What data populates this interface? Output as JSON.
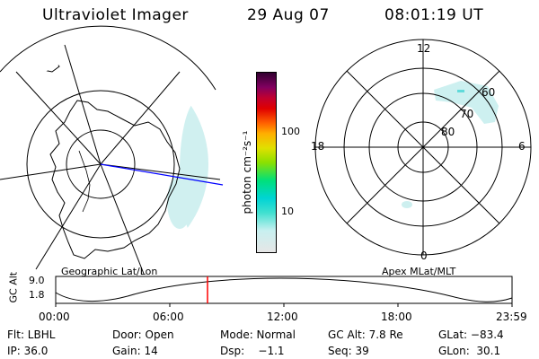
{
  "header": {
    "instrument": "Ultraviolet Imager",
    "date": "29 Aug 07",
    "time": "08:01:19 UT"
  },
  "left_panel": {
    "caption": "Geographic Lat/Lon",
    "view": "southern hemisphere geographic map with Antarctica outline and lat/lon grid",
    "overlay_line_color": "#0000ff"
  },
  "right_panel": {
    "caption": "Apex MLat/MLT",
    "mlt_labels": {
      "top": "12",
      "left": "18",
      "right": "6",
      "bottom": "0"
    },
    "mlat_labels": [
      "60",
      "70",
      "80"
    ]
  },
  "colorbar": {
    "unit_label": "photon cm⁻²s⁻¹",
    "ticks": [
      "100",
      "10"
    ],
    "scale": "log",
    "colors_bottom_to_top": [
      "#e6e6e6",
      "#c8f0f0",
      "#40e0d0",
      "#00d4d4",
      "#00e07a",
      "#8ce000",
      "#e0e000",
      "#ffb000",
      "#ff6000",
      "#e00000",
      "#c00030",
      "#800060",
      "#300030"
    ]
  },
  "timeline": {
    "axis_label": "GC Alt",
    "y_ticks": [
      "9.0",
      "1.8"
    ],
    "x_ticks": [
      "00:00",
      "06:00",
      "12:00",
      "18:00",
      "23:59"
    ],
    "marker_time": "08:01",
    "marker_color": "#ff0000"
  },
  "footer": {
    "flt": "Flt: LBHL",
    "door": "Door: Open",
    "mode": "Mode: Normal",
    "gc_alt": "GC Alt: 7.8 Re",
    "glat": "GLat: −83.4",
    "ip": "IP: 36.0",
    "gain": "Gain: 14",
    "dsp": "Dsp:    −1.1",
    "seq": "Seq: 39",
    "glon": "GLon:  30.1"
  }
}
